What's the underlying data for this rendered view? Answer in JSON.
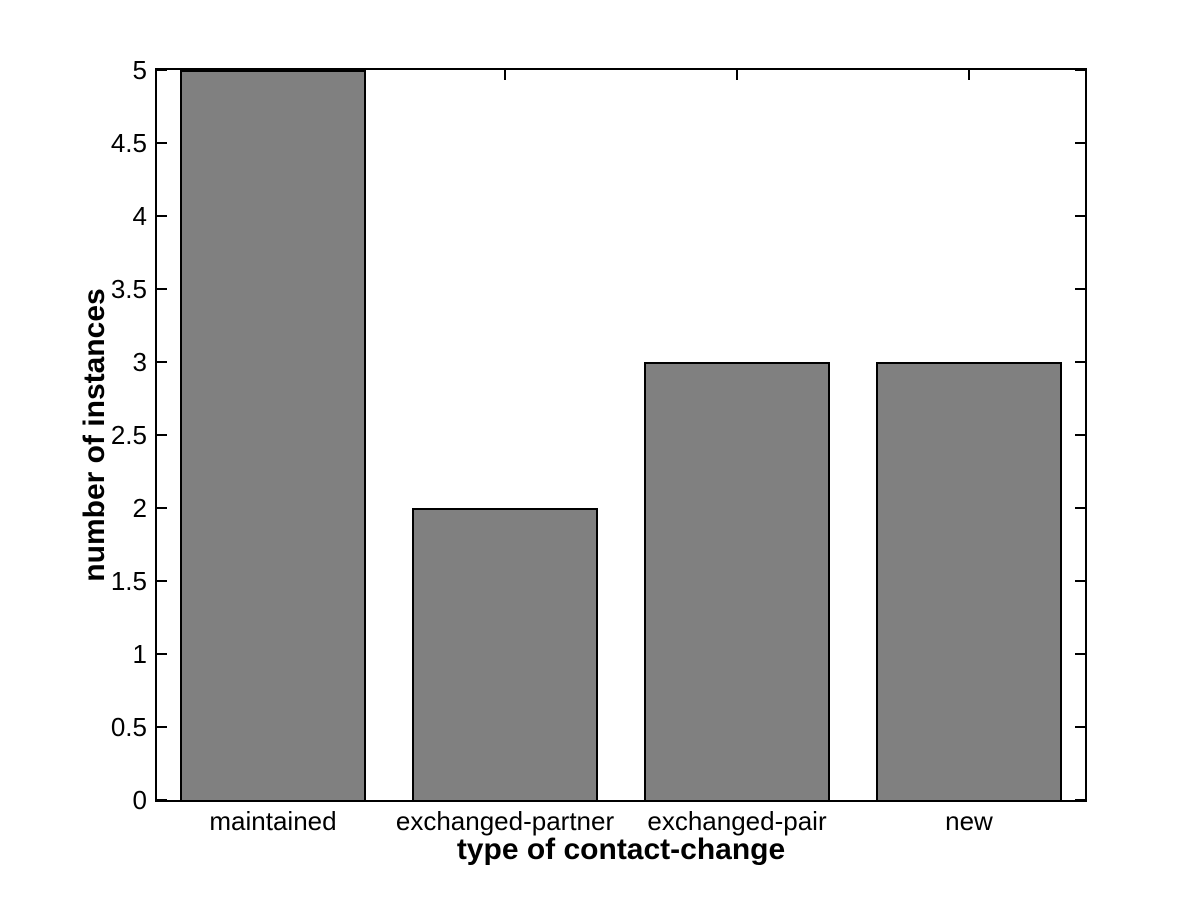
{
  "chart_data": {
    "type": "bar",
    "title": "",
    "xlabel": "type of contact-change",
    "ylabel": "number of instances",
    "categories": [
      "maintained",
      "exchanged-partner",
      "exchanged-pair",
      "new"
    ],
    "values": [
      5,
      2,
      3,
      3
    ],
    "xlim": [
      0.5,
      4.5
    ],
    "ylim": [
      0,
      5
    ],
    "ytick_step": 0.5,
    "ytick_labels": [
      "0",
      "0.5",
      "1",
      "1.5",
      "2",
      "2.5",
      "3",
      "3.5",
      "4",
      "4.5",
      "5"
    ],
    "bar_width_fraction": 0.8,
    "grid": false,
    "legend_position": "none",
    "tick_direction": "in",
    "box": true,
    "colors": {
      "bar_fill": "#808080",
      "bar_edge": "#000000",
      "axis": "#000000",
      "text": "#000000",
      "background": "#ffffff"
    }
  }
}
